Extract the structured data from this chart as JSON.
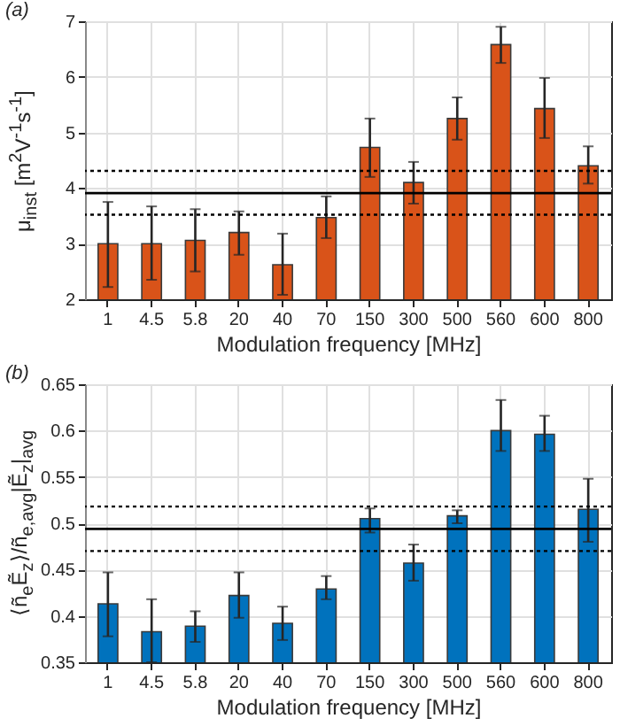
{
  "chart_data": [
    {
      "type": "bar",
      "annotations": [
        "(a)"
      ],
      "xlabel": "Modulation frequency [MHz]",
      "ylabel": "μ$_{inst}$ [m$^{2}$V$^{-1}$s$^{-1}$]",
      "categories": [
        "1",
        "4.5",
        "5.8",
        "20",
        "40",
        "70",
        "150",
        "300",
        "500",
        "560",
        "600",
        "800"
      ],
      "series": [
        {
          "color": "#d95319",
          "values": [
            3.0,
            3.0,
            3.06,
            3.2,
            2.62,
            3.47,
            4.73,
            4.1,
            5.25,
            6.58,
            5.43,
            4.4
          ],
          "errors": [
            [
              2.22,
              3.75
            ],
            [
              2.35,
              3.67
            ],
            [
              2.5,
              3.62
            ],
            [
              2.8,
              3.58
            ],
            [
              2.08,
              3.18
            ],
            [
              3.1,
              3.85
            ],
            [
              4.2,
              5.25
            ],
            [
              3.72,
              4.47
            ],
            [
              4.87,
              5.63
            ],
            [
              6.25,
              6.9
            ],
            [
              4.9,
              5.98
            ],
            [
              4.08,
              4.75
            ]
          ]
        }
      ],
      "ylim": [
        2,
        7
      ],
      "yticks": [
        2,
        3,
        4,
        5,
        6,
        7
      ],
      "grid": true,
      "ref_lines": [
        {
          "axis": "y",
          "value": 3.91,
          "color": "#000000",
          "line_style": "solid"
        },
        {
          "axis": "y",
          "value": 4.31,
          "color": "#000000",
          "line_style": "dotted"
        },
        {
          "axis": "y",
          "value": 3.52,
          "color": "#000000",
          "line_style": "dotted"
        }
      ]
    },
    {
      "type": "bar",
      "annotations": [
        "(b)"
      ],
      "xlabel": "Modulation frequency [MHz]",
      "ylabel": "⟨ñ$_{e}$Ẽ$_{z}$⟩/ñ$_{e,avg}$|Ẽ$_{z}$|$_{avg}$",
      "categories": [
        "1",
        "4.5",
        "5.8",
        "20",
        "40",
        "70",
        "150",
        "300",
        "500",
        "560",
        "600",
        "800"
      ],
      "series": [
        {
          "color": "#0072bd",
          "values": [
            0.413,
            0.383,
            0.389,
            0.422,
            0.392,
            0.429,
            0.505,
            0.457,
            0.508,
            0.6,
            0.596,
            0.515
          ],
          "errors": [
            [
              0.378,
              0.447
            ],
            [
              0.35,
              0.418
            ],
            [
              0.372,
              0.405
            ],
            [
              0.398,
              0.447
            ],
            [
              0.374,
              0.41
            ],
            [
              0.418,
              0.443
            ],
            [
              0.49,
              0.516
            ],
            [
              0.438,
              0.477
            ],
            [
              0.5,
              0.514
            ],
            [
              0.578,
              0.633
            ],
            [
              0.578,
              0.616
            ],
            [
              0.48,
              0.548
            ]
          ]
        }
      ],
      "ylim": [
        0.35,
        0.65
      ],
      "yticks": [
        0.35,
        0.4,
        0.45,
        0.5,
        0.55,
        0.6,
        0.65
      ],
      "grid": true,
      "ref_lines": [
        {
          "axis": "y",
          "value": 0.494,
          "color": "#000000",
          "line_style": "solid"
        },
        {
          "axis": "y",
          "value": 0.518,
          "color": "#000000",
          "line_style": "dotted"
        },
        {
          "axis": "y",
          "value": 0.47,
          "color": "#000000",
          "line_style": "dotted"
        }
      ]
    }
  ]
}
